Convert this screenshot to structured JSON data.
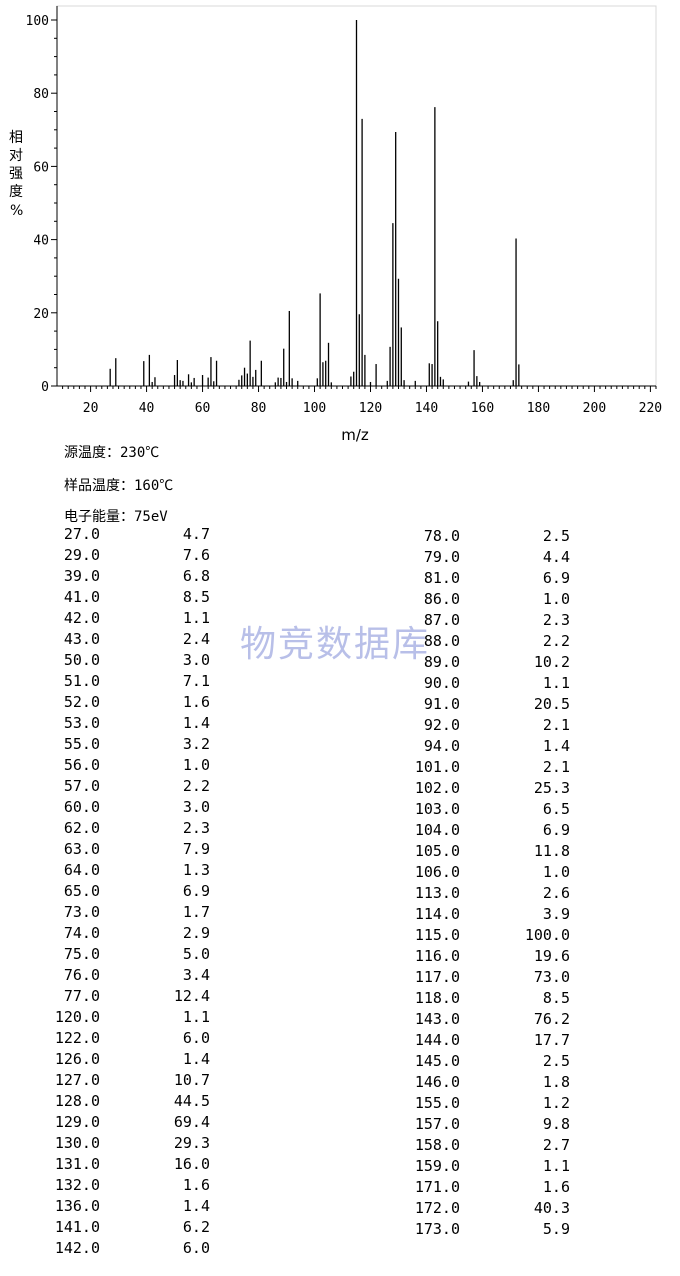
{
  "chart_data": {
    "type": "bar",
    "xlabel": "m/z",
    "ylabel": "相对强度%",
    "xlim": [
      8,
      222
    ],
    "ylim": [
      0,
      100
    ],
    "xticks": [
      20,
      40,
      60,
      80,
      100,
      120,
      140,
      160,
      180,
      200,
      220
    ],
    "yticks": [
      0,
      20,
      40,
      60,
      80,
      100
    ],
    "grid": false,
    "peaks": [
      [
        27.0,
        4.7
      ],
      [
        29.0,
        7.6
      ],
      [
        39.0,
        6.8
      ],
      [
        41.0,
        8.5
      ],
      [
        42.0,
        1.1
      ],
      [
        43.0,
        2.4
      ],
      [
        50.0,
        3.0
      ],
      [
        51.0,
        7.1
      ],
      [
        52.0,
        1.6
      ],
      [
        53.0,
        1.4
      ],
      [
        55.0,
        3.2
      ],
      [
        56.0,
        1.0
      ],
      [
        57.0,
        2.2
      ],
      [
        60.0,
        3.0
      ],
      [
        62.0,
        2.3
      ],
      [
        63.0,
        7.9
      ],
      [
        64.0,
        1.3
      ],
      [
        65.0,
        6.9
      ],
      [
        73.0,
        1.7
      ],
      [
        74.0,
        2.9
      ],
      [
        75.0,
        5.0
      ],
      [
        76.0,
        3.4
      ],
      [
        77.0,
        12.4
      ],
      [
        78.0,
        2.5
      ],
      [
        79.0,
        4.4
      ],
      [
        81.0,
        6.9
      ],
      [
        86.0,
        1.0
      ],
      [
        87.0,
        2.3
      ],
      [
        88.0,
        2.2
      ],
      [
        89.0,
        10.2
      ],
      [
        90.0,
        1.1
      ],
      [
        91.0,
        20.5
      ],
      [
        92.0,
        2.1
      ],
      [
        94.0,
        1.4
      ],
      [
        101.0,
        2.1
      ],
      [
        102.0,
        25.3
      ],
      [
        103.0,
        6.5
      ],
      [
        104.0,
        6.9
      ],
      [
        105.0,
        11.8
      ],
      [
        106.0,
        1.0
      ],
      [
        113.0,
        2.6
      ],
      [
        114.0,
        3.9
      ],
      [
        115.0,
        100.0
      ],
      [
        116.0,
        19.6
      ],
      [
        117.0,
        73.0
      ],
      [
        118.0,
        8.5
      ],
      [
        120.0,
        1.1
      ],
      [
        122.0,
        6.0
      ],
      [
        126.0,
        1.4
      ],
      [
        127.0,
        10.7
      ],
      [
        128.0,
        44.5
      ],
      [
        129.0,
        69.4
      ],
      [
        130.0,
        29.3
      ],
      [
        131.0,
        16.0
      ],
      [
        132.0,
        1.6
      ],
      [
        136.0,
        1.4
      ],
      [
        141.0,
        6.2
      ],
      [
        142.0,
        6.0
      ],
      [
        143.0,
        76.2
      ],
      [
        144.0,
        17.7
      ],
      [
        145.0,
        2.5
      ],
      [
        146.0,
        1.8
      ],
      [
        155.0,
        1.2
      ],
      [
        157.0,
        9.8
      ],
      [
        158.0,
        2.7
      ],
      [
        159.0,
        1.1
      ],
      [
        171.0,
        1.6
      ],
      [
        172.0,
        40.3
      ],
      [
        173.0,
        5.9
      ]
    ]
  },
  "conditions": {
    "source_temp": "源温度：230℃",
    "sample_temp": "样品温度：160℃",
    "electron_energy": "电子能量：75eV"
  },
  "watermark": "物竞数据库",
  "peak_table": {
    "left": [
      [
        "27.0",
        "4.7"
      ],
      [
        "29.0",
        "7.6"
      ],
      [
        "39.0",
        "6.8"
      ],
      [
        "41.0",
        "8.5"
      ],
      [
        "42.0",
        "1.1"
      ],
      [
        "43.0",
        "2.4"
      ],
      [
        "50.0",
        "3.0"
      ],
      [
        "51.0",
        "7.1"
      ],
      [
        "52.0",
        "1.6"
      ],
      [
        "53.0",
        "1.4"
      ],
      [
        "55.0",
        "3.2"
      ],
      [
        "56.0",
        "1.0"
      ],
      [
        "57.0",
        "2.2"
      ],
      [
        "60.0",
        "3.0"
      ],
      [
        "62.0",
        "2.3"
      ],
      [
        "63.0",
        "7.9"
      ],
      [
        "64.0",
        "1.3"
      ],
      [
        "65.0",
        "6.9"
      ],
      [
        "73.0",
        "1.7"
      ],
      [
        "74.0",
        "2.9"
      ],
      [
        "75.0",
        "5.0"
      ],
      [
        "76.0",
        "3.4"
      ],
      [
        "77.0",
        "12.4"
      ],
      [
        "120.0",
        "1.1"
      ],
      [
        "122.0",
        "6.0"
      ],
      [
        "126.0",
        "1.4"
      ],
      [
        "127.0",
        "10.7"
      ],
      [
        "128.0",
        "44.5"
      ],
      [
        "129.0",
        "69.4"
      ],
      [
        "130.0",
        "29.3"
      ],
      [
        "131.0",
        "16.0"
      ],
      [
        "132.0",
        "1.6"
      ],
      [
        "136.0",
        "1.4"
      ],
      [
        "141.0",
        "6.2"
      ],
      [
        "142.0",
        "6.0"
      ]
    ],
    "right": [
      [
        "78.0",
        "2.5"
      ],
      [
        "79.0",
        "4.4"
      ],
      [
        "81.0",
        "6.9"
      ],
      [
        "86.0",
        "1.0"
      ],
      [
        "87.0",
        "2.3"
      ],
      [
        "88.0",
        "2.2"
      ],
      [
        "89.0",
        "10.2"
      ],
      [
        "90.0",
        "1.1"
      ],
      [
        "91.0",
        "20.5"
      ],
      [
        "92.0",
        "2.1"
      ],
      [
        "94.0",
        "1.4"
      ],
      [
        "101.0",
        "2.1"
      ],
      [
        "102.0",
        "25.3"
      ],
      [
        "103.0",
        "6.5"
      ],
      [
        "104.0",
        "6.9"
      ],
      [
        "105.0",
        "11.8"
      ],
      [
        "106.0",
        "1.0"
      ],
      [
        "113.0",
        "2.6"
      ],
      [
        "114.0",
        "3.9"
      ],
      [
        "115.0",
        "100.0"
      ],
      [
        "116.0",
        "19.6"
      ],
      [
        "117.0",
        "73.0"
      ],
      [
        "118.0",
        "8.5"
      ],
      [
        "143.0",
        "76.2"
      ],
      [
        "144.0",
        "17.7"
      ],
      [
        "145.0",
        "2.5"
      ],
      [
        "146.0",
        "1.8"
      ],
      [
        "155.0",
        "1.2"
      ],
      [
        "157.0",
        "9.8"
      ],
      [
        "158.0",
        "2.7"
      ],
      [
        "159.0",
        "1.1"
      ],
      [
        "171.0",
        "1.6"
      ],
      [
        "172.0",
        "40.3"
      ],
      [
        "173.0",
        "5.9"
      ]
    ]
  }
}
